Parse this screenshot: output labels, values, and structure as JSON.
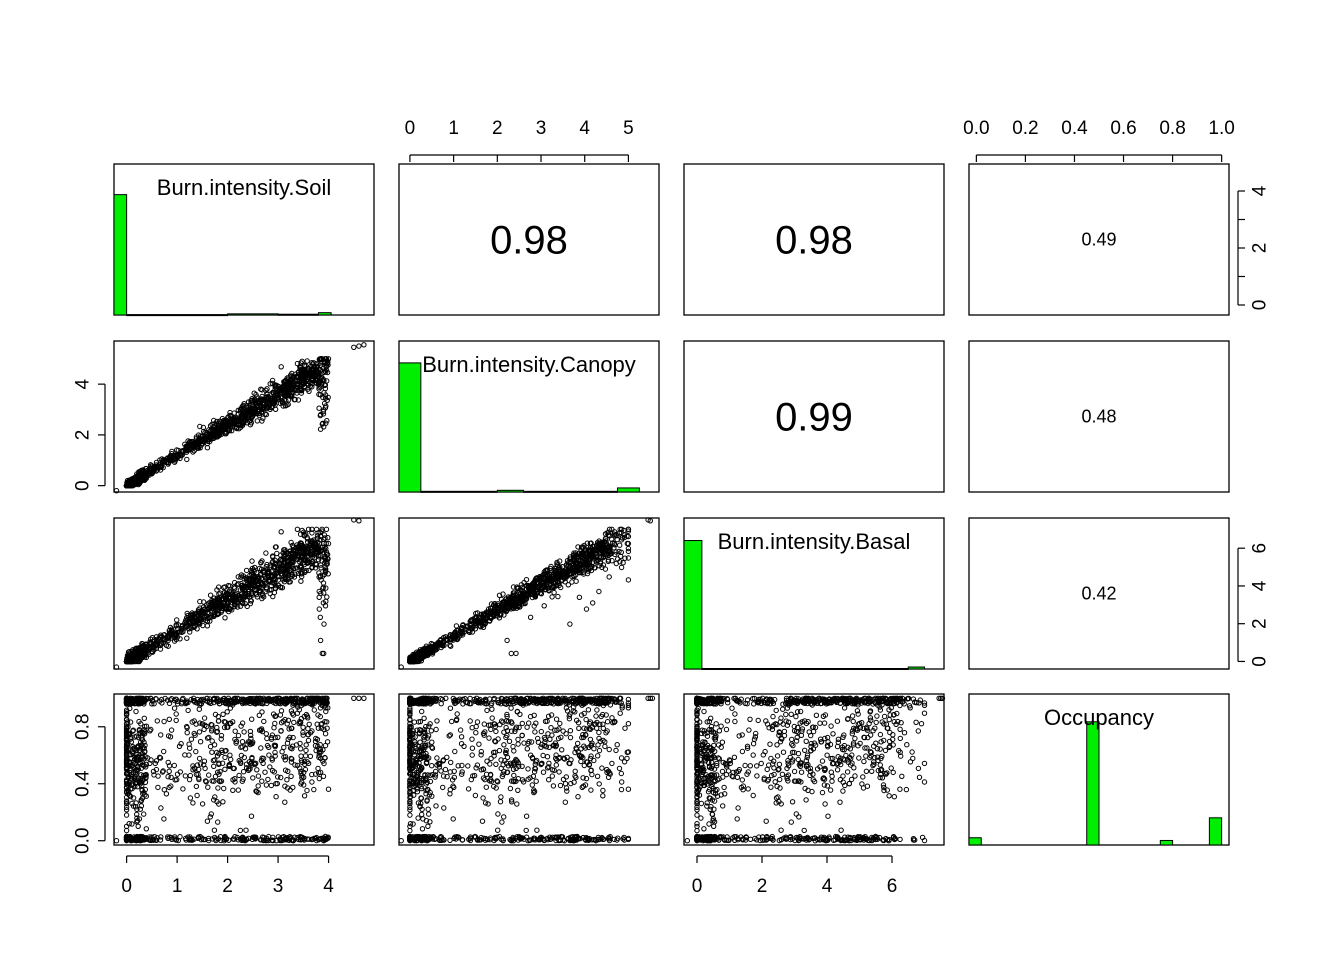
{
  "chart_data": {
    "type": "scatter",
    "subtype": "pairs-matrix",
    "variables": [
      "Burn.intensity.Soil",
      "Burn.intensity.Canopy",
      "Burn.intensity.Basal",
      "Occupancy"
    ],
    "ranges": {
      "Burn.intensity.Soil": [
        -0.25,
        4.9
      ],
      "Burn.intensity.Canopy": [
        -0.25,
        5.7
      ],
      "Burn.intensity.Basal": [
        -0.4,
        7.6
      ],
      "Occupancy": [
        -0.03,
        1.03
      ]
    },
    "axis_ticks": {
      "Burn.intensity.Soil": [
        "0",
        "1",
        "2",
        "3",
        "4"
      ],
      "Burn.intensity.Canopy": [
        "0",
        "1",
        "2",
        "3",
        "4",
        "5"
      ],
      "Burn.intensity.Basal": [
        "0",
        "2",
        "4",
        "6"
      ],
      "Occupancy": [
        "0.0",
        "0.2",
        "0.4",
        "0.6",
        "0.8",
        "1.0"
      ],
      "Occupancy_left": [
        "0.0",
        "0.4",
        "0.8"
      ],
      "Canopy_left": [
        "0",
        "2",
        "4"
      ],
      "Canopy_right": [
        "0",
        "2",
        "4"
      ],
      "Basal_right": [
        "0",
        "2",
        "4",
        "6"
      ]
    },
    "correlations": [
      {
        "pair": [
          "Burn.intensity.Soil",
          "Burn.intensity.Canopy"
        ],
        "label": "0.98"
      },
      {
        "pair": [
          "Burn.intensity.Soil",
          "Burn.intensity.Basal"
        ],
        "label": "0.98"
      },
      {
        "pair": [
          "Burn.intensity.Soil",
          "Occupancy"
        ],
        "label": "0.49"
      },
      {
        "pair": [
          "Burn.intensity.Canopy",
          "Burn.intensity.Basal"
        ],
        "label": "0.99"
      },
      {
        "pair": [
          "Burn.intensity.Canopy",
          "Occupancy"
        ],
        "label": "0.48"
      },
      {
        "pair": [
          "Burn.intensity.Basal",
          "Occupancy"
        ],
        "label": "0.42"
      }
    ],
    "histograms": {
      "Burn.intensity.Soil": {
        "bins": [
          [
            -0.25,
            0.0,
            3.1
          ],
          [
            0.0,
            2.0,
            0.01
          ],
          [
            2.0,
            3.0,
            0.03
          ],
          [
            3.0,
            3.8,
            0.02
          ],
          [
            3.8,
            4.05,
            0.06
          ],
          [
            4.05,
            4.9,
            0.0
          ]
        ],
        "ylim": [
          0,
          3.5
        ]
      },
      "Burn.intensity.Canopy": {
        "bins": [
          [
            -0.25,
            0.25,
            3.8
          ],
          [
            0.25,
            2.0,
            0.02
          ],
          [
            2.0,
            2.6,
            0.05
          ],
          [
            2.6,
            4.75,
            0.02
          ],
          [
            4.75,
            5.25,
            0.12
          ],
          [
            5.25,
            5.7,
            0.0
          ]
        ],
        "ylim": [
          0,
          4.0
        ]
      },
      "Burn.intensity.Basal": {
        "bins": [
          [
            -0.4,
            0.15,
            5.2
          ],
          [
            0.15,
            6.5,
            0.02
          ],
          [
            6.5,
            7.0,
            0.08
          ],
          [
            7.0,
            7.6,
            0.0
          ]
        ],
        "ylim": [
          0,
          5.5
        ]
      },
      "Occupancy": {
        "bins": [
          [
            -0.03,
            0.02,
            0.04
          ],
          [
            0.45,
            0.5,
            0.68
          ],
          [
            0.75,
            0.8,
            0.025
          ],
          [
            0.95,
            1.0,
            0.15
          ]
        ],
        "ylim": [
          0,
          0.75
        ]
      }
    },
    "scatter_description": {
      "Canopy_vs_Soil": {
        "slope": 1.2,
        "max_x": 4.0
      },
      "Basal_vs_Soil": {
        "slope": 1.6,
        "max_x": 4.0
      },
      "Basal_vs_Canopy": {
        "slope": 1.35,
        "max_x": 5.0
      },
      "Occupancy_trend": {
        "start": 0.5,
        "end": 0.75
      }
    },
    "grid": false,
    "point_shape": "open-circle",
    "histogram_color": "#00ee00"
  }
}
